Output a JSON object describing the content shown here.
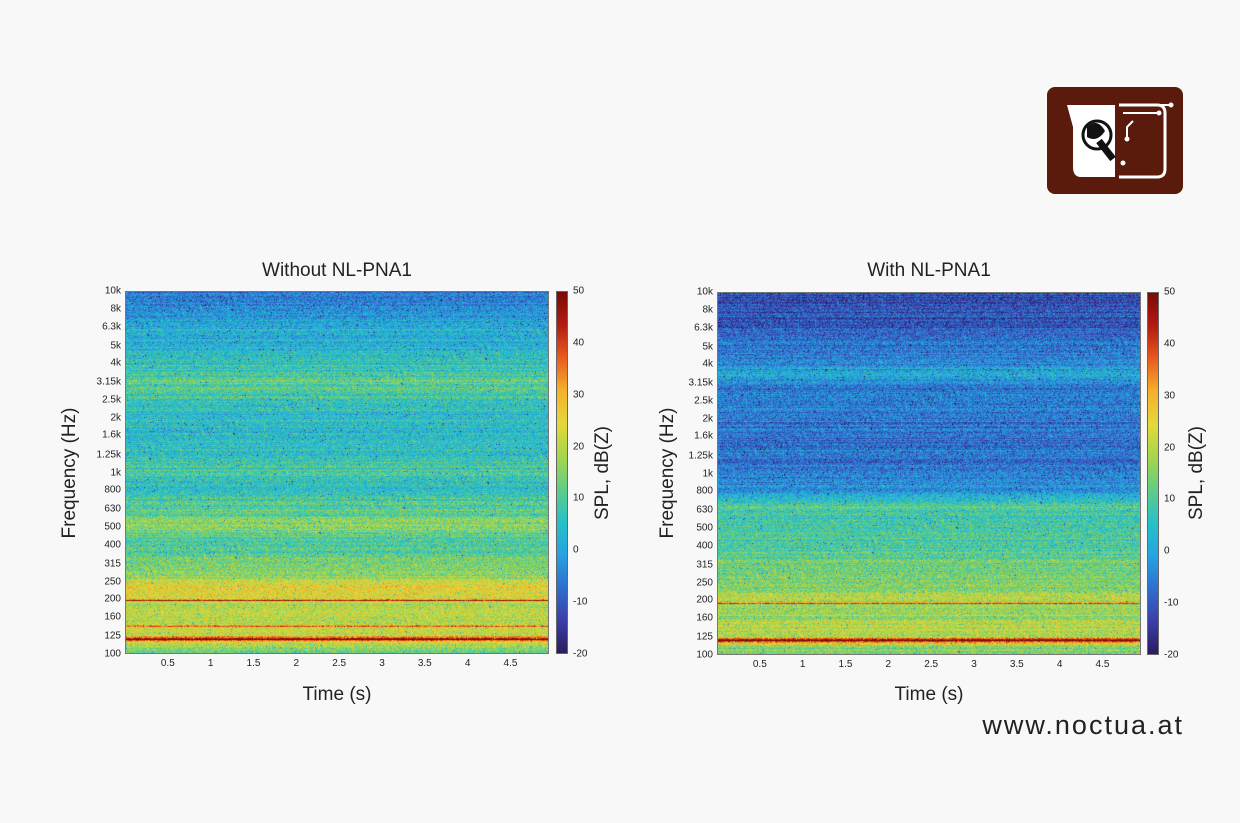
{
  "brand": {
    "logo_icon": "noctua-owl-logo-icon",
    "bg_color": "#5a1a0c",
    "website": "www.noctua.at"
  },
  "colormap": [
    "#2b1a5e",
    "#3b3fa8",
    "#2f6fd0",
    "#26a3e0",
    "#25c2c7",
    "#62cc86",
    "#a6d64a",
    "#e5d83a",
    "#f4b12b",
    "#ea5a1f",
    "#b31b10",
    "#7a0a06"
  ],
  "chart_data": [
    {
      "type": "heatmap",
      "title": "Without NL-PNA1",
      "xlabel": "Time (s)",
      "ylabel": "Frequency (Hz)",
      "colorbar_label": "SPL, dB(Z)",
      "x_ticks": [
        "0.5",
        "1",
        "1.5",
        "2",
        "2.5",
        "3",
        "3.5",
        "4",
        "4.5"
      ],
      "x_tick_values": [
        0.5,
        1,
        1.5,
        2,
        2.5,
        3,
        3.5,
        4,
        4.5
      ],
      "xlim": [
        0,
        4.95
      ],
      "y_scale": "log",
      "y_ticks": [
        "100",
        "125",
        "160",
        "200",
        "250",
        "315",
        "400",
        "500",
        "630",
        "800",
        "1k",
        "1.25k",
        "1.6k",
        "2k",
        "2.5k",
        "3.15k",
        "4k",
        "5k",
        "6.3k",
        "8k",
        "10k"
      ],
      "y_tick_values": [
        100,
        125,
        160,
        200,
        250,
        315,
        400,
        500,
        630,
        800,
        1000,
        1250,
        1600,
        2000,
        2500,
        3150,
        4000,
        5000,
        6300,
        8000,
        10000
      ],
      "ylim": [
        100,
        10000
      ],
      "colorbar_ticks": [
        "-20",
        "-10",
        "0",
        "10",
        "20",
        "30",
        "40",
        "50"
      ],
      "clim": [
        -20,
        50
      ],
      "level_profile_db": {
        "freq_hz": [
          100,
          110,
          120,
          125,
          140,
          160,
          200,
          250,
          260,
          315,
          400,
          500,
          630,
          800,
          1000,
          1250,
          1600,
          2000,
          2500,
          3150,
          4000,
          5000,
          6300,
          8000,
          10000
        ],
        "spl_db": [
          14,
          18,
          42,
          22,
          22,
          20,
          24,
          25,
          16,
          14,
          9,
          16,
          11,
          6,
          8,
          6,
          5,
          5,
          7,
          13,
          6,
          3,
          1,
          -3,
          -6
        ]
      },
      "tonal_lines_hz": [
        118,
        140,
        195
      ]
    },
    {
      "type": "heatmap",
      "title": "With NL-PNA1",
      "xlabel": "Time (s)",
      "ylabel": "Frequency (Hz)",
      "colorbar_label": "SPL, dB(Z)",
      "x_ticks": [
        "0.5",
        "1",
        "1.5",
        "2",
        "2.5",
        "3",
        "3.5",
        "4",
        "4.5"
      ],
      "x_tick_values": [
        0.5,
        1,
        1.5,
        2,
        2.5,
        3,
        3.5,
        4,
        4.5
      ],
      "xlim": [
        0,
        4.95
      ],
      "y_scale": "log",
      "y_ticks": [
        "100",
        "125",
        "160",
        "200",
        "250",
        "315",
        "400",
        "500",
        "630",
        "800",
        "1k",
        "1.25k",
        "1.6k",
        "2k",
        "2.5k",
        "3.15k",
        "4k",
        "5k",
        "6.3k",
        "8k",
        "10k"
      ],
      "y_tick_values": [
        100,
        125,
        160,
        200,
        250,
        315,
        400,
        500,
        630,
        800,
        1000,
        1250,
        1600,
        2000,
        2500,
        3150,
        4000,
        5000,
        6300,
        8000,
        10000
      ],
      "ylim": [
        100,
        10000
      ],
      "colorbar_ticks": [
        "-20",
        "-10",
        "0",
        "10",
        "20",
        "30",
        "40",
        "50"
      ],
      "clim": [
        -20,
        50
      ],
      "level_profile_db": {
        "freq_hz": [
          100,
          110,
          120,
          125,
          140,
          160,
          200,
          250,
          315,
          400,
          500,
          630,
          650,
          800,
          1000,
          1250,
          1600,
          2000,
          2500,
          3150,
          3500,
          4000,
          5000,
          6300,
          8000,
          10000
        ],
        "spl_db": [
          14,
          18,
          42,
          20,
          20,
          18,
          20,
          14,
          12,
          10,
          9,
          7,
          12,
          -3,
          -5,
          -7,
          -7,
          -6,
          -6,
          -4,
          1,
          -2,
          -7,
          -10,
          -12,
          -12
        ]
      },
      "tonal_lines_hz": [
        118,
        190
      ]
    }
  ]
}
